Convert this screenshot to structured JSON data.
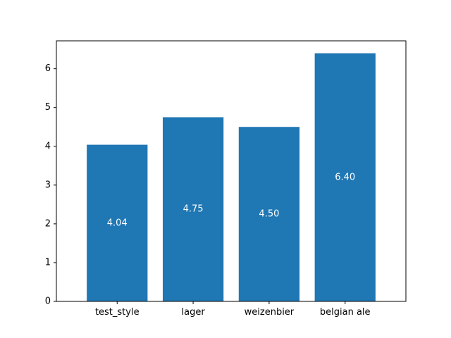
{
  "chart_data": {
    "type": "bar",
    "title": "",
    "xlabel": "",
    "ylabel": "",
    "categories": [
      "test_style",
      "lager",
      "weizenbier",
      "belgian ale"
    ],
    "values": [
      4.04,
      4.75,
      4.5,
      6.4
    ],
    "data_labels": [
      "4.04",
      "4.75",
      "4.50",
      "6.40"
    ],
    "y_ticks": [
      0,
      1,
      2,
      3,
      4,
      5,
      6
    ],
    "ylim": [
      0,
      6.72
    ],
    "grid": false,
    "legend": "none",
    "bar_color": "#1f77b4",
    "label_color": "#ffffff"
  }
}
